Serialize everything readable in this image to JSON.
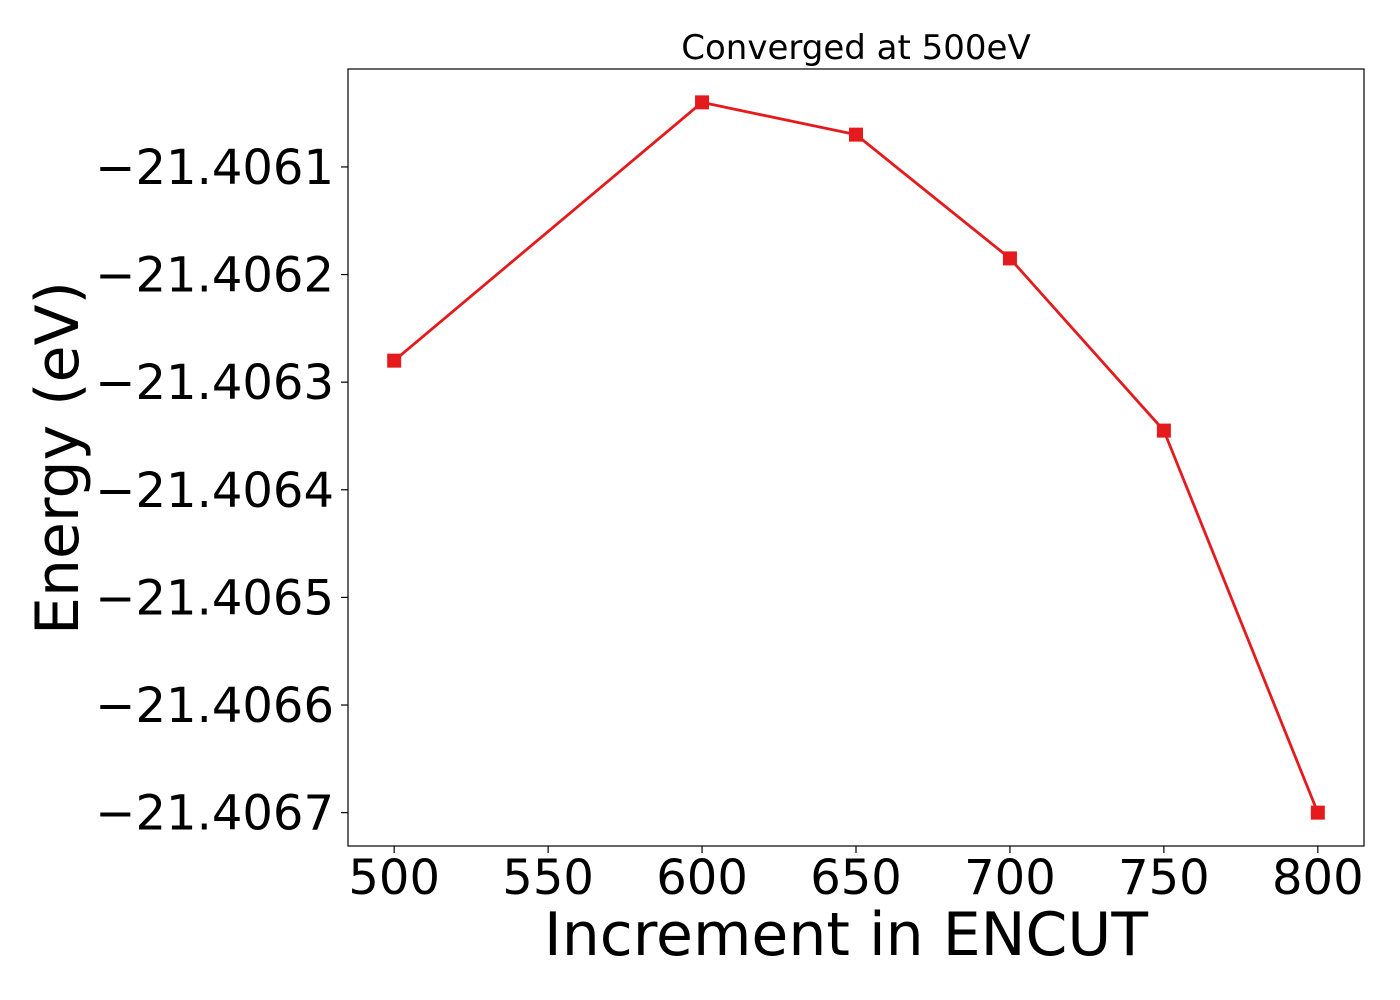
{
  "chart_data": {
    "type": "line",
    "title": "Converged at 500eV",
    "xlabel": "Increment in ENCUT",
    "ylabel": "Energy (eV)",
    "x": [
      500,
      600,
      650,
      700,
      750,
      800
    ],
    "series": [
      {
        "values": [
          -21.40628,
          -21.40604,
          -21.40607,
          -21.406185,
          -21.406345,
          -21.4067
        ],
        "color": "#e41a1c",
        "marker": "square"
      }
    ],
    "xticks": [
      500,
      550,
      600,
      650,
      700,
      750,
      800
    ],
    "xtick_labels": [
      "500",
      "550",
      "600",
      "650",
      "700",
      "750",
      "800"
    ],
    "yticks": [
      -21.4061,
      -21.4062,
      -21.4063,
      -21.4064,
      -21.4065,
      -21.4066,
      -21.4067
    ],
    "ytick_labels": [
      "−21.4061",
      "−21.4062",
      "−21.4063",
      "−21.4064",
      "−21.4065",
      "−21.4066",
      "−21.4067"
    ],
    "xlim": [
      485,
      815
    ],
    "ylim": [
      -21.406731,
      -21.406009
    ],
    "grid": false
  }
}
